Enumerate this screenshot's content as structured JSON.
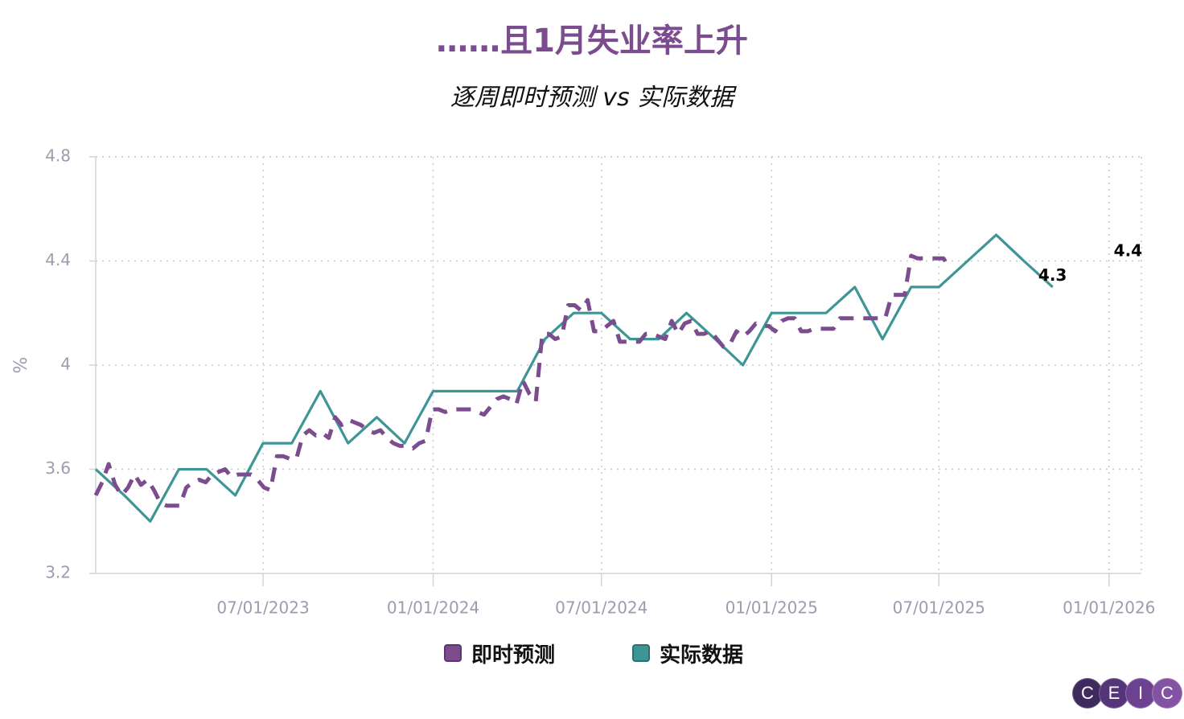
{
  "chart_data": {
    "type": "line",
    "title": "……且1月失业率上升",
    "subtitle": "逐周即时预测 vs 实际数据",
    "ylabel": "%",
    "xlabel": "",
    "ylim": [
      3.2,
      4.8
    ],
    "yticks": [
      3.2,
      3.6,
      4,
      4.4,
      4.8
    ],
    "ytick_labels": [
      "3.2",
      "3.6",
      "4",
      "4.4",
      "4.8"
    ],
    "xlim": [
      "2023-01-01",
      "2026-02-05"
    ],
    "xticks": [
      "2023-07-01",
      "2024-01-01",
      "2024-07-01",
      "2025-01-01",
      "2025-07-01",
      "2026-01-01"
    ],
    "xtick_labels": [
      "07/01/2023",
      "01/01/2024",
      "07/01/2024",
      "01/01/2025",
      "07/01/2025",
      "01/01/2026"
    ],
    "grid": true,
    "legend_position": "bottom-center",
    "series": [
      {
        "name": "即时预测",
        "color": "#7b4c8e",
        "style": "dashed",
        "points": [
          [
            "2023-01-01",
            3.5
          ],
          [
            "2023-01-08",
            3.55
          ],
          [
            "2023-01-15",
            3.62
          ],
          [
            "2023-01-22",
            3.54
          ],
          [
            "2023-01-29",
            3.5
          ],
          [
            "2023-02-05",
            3.53
          ],
          [
            "2023-02-12",
            3.58
          ],
          [
            "2023-02-19",
            3.54
          ],
          [
            "2023-02-26",
            3.56
          ],
          [
            "2023-03-05",
            3.52
          ],
          [
            "2023-03-12",
            3.47
          ],
          [
            "2023-03-19",
            3.46
          ],
          [
            "2023-03-26",
            3.46
          ],
          [
            "2023-04-02",
            3.46
          ],
          [
            "2023-04-09",
            3.53
          ],
          [
            "2023-04-16",
            3.55
          ],
          [
            "2023-04-23",
            3.56
          ],
          [
            "2023-04-30",
            3.55
          ],
          [
            "2023-05-07",
            3.58
          ],
          [
            "2023-05-14",
            3.59
          ],
          [
            "2023-05-21",
            3.6
          ],
          [
            "2023-05-28",
            3.57
          ],
          [
            "2023-06-04",
            3.58
          ],
          [
            "2023-06-11",
            3.58
          ],
          [
            "2023-06-18",
            3.58
          ],
          [
            "2023-06-25",
            3.56
          ],
          [
            "2023-07-02",
            3.53
          ],
          [
            "2023-07-09",
            3.52
          ],
          [
            "2023-07-16",
            3.65
          ],
          [
            "2023-07-23",
            3.65
          ],
          [
            "2023-07-30",
            3.64
          ],
          [
            "2023-08-06",
            3.64
          ],
          [
            "2023-08-13",
            3.73
          ],
          [
            "2023-08-20",
            3.75
          ],
          [
            "2023-08-27",
            3.73
          ],
          [
            "2023-09-03",
            3.74
          ],
          [
            "2023-09-10",
            3.72
          ],
          [
            "2023-09-17",
            3.8
          ],
          [
            "2023-09-24",
            3.77
          ],
          [
            "2023-10-01",
            3.79
          ],
          [
            "2023-10-08",
            3.78
          ],
          [
            "2023-10-15",
            3.77
          ],
          [
            "2023-10-22",
            3.75
          ],
          [
            "2023-10-29",
            3.74
          ],
          [
            "2023-11-05",
            3.75
          ],
          [
            "2023-11-12",
            3.72
          ],
          [
            "2023-11-19",
            3.7
          ],
          [
            "2023-11-26",
            3.69
          ],
          [
            "2023-12-03",
            3.69
          ],
          [
            "2023-12-10",
            3.68
          ],
          [
            "2023-12-17",
            3.7
          ],
          [
            "2023-12-24",
            3.71
          ],
          [
            "2023-12-31",
            3.83
          ],
          [
            "2024-01-07",
            3.83
          ],
          [
            "2024-01-14",
            3.82
          ],
          [
            "2024-01-21",
            3.83
          ],
          [
            "2024-01-28",
            3.83
          ],
          [
            "2024-02-04",
            3.83
          ],
          [
            "2024-02-11",
            3.83
          ],
          [
            "2024-02-18",
            3.82
          ],
          [
            "2024-02-25",
            3.81
          ],
          [
            "2024-03-03",
            3.84
          ],
          [
            "2024-03-10",
            3.87
          ],
          [
            "2024-03-17",
            3.88
          ],
          [
            "2024-03-24",
            3.87
          ],
          [
            "2024-03-31",
            3.85
          ],
          [
            "2024-04-07",
            3.94
          ],
          [
            "2024-04-14",
            3.89
          ],
          [
            "2024-04-21",
            3.86
          ],
          [
            "2024-04-28",
            4.12
          ],
          [
            "2024-05-05",
            4.12
          ],
          [
            "2024-05-12",
            4.1
          ],
          [
            "2024-05-19",
            4.11
          ],
          [
            "2024-05-26",
            4.23
          ],
          [
            "2024-06-02",
            4.23
          ],
          [
            "2024-06-09",
            4.21
          ],
          [
            "2024-06-16",
            4.25
          ],
          [
            "2024-06-23",
            4.13
          ],
          [
            "2024-06-30",
            4.13
          ],
          [
            "2024-07-07",
            4.15
          ],
          [
            "2024-07-14",
            4.17
          ],
          [
            "2024-07-21",
            4.09
          ],
          [
            "2024-07-28",
            4.09
          ],
          [
            "2024-08-04",
            4.09
          ],
          [
            "2024-08-11",
            4.09
          ],
          [
            "2024-08-18",
            4.12
          ],
          [
            "2024-08-25",
            4.12
          ],
          [
            "2024-09-01",
            4.11
          ],
          [
            "2024-09-08",
            4.1
          ],
          [
            "2024-09-15",
            4.17
          ],
          [
            "2024-09-22",
            4.12
          ],
          [
            "2024-09-29",
            4.16
          ],
          [
            "2024-10-06",
            4.17
          ],
          [
            "2024-10-13",
            4.12
          ],
          [
            "2024-10-20",
            4.12
          ],
          [
            "2024-10-27",
            4.13
          ],
          [
            "2024-11-03",
            4.1
          ],
          [
            "2024-11-10",
            4.07
          ],
          [
            "2024-11-17",
            4.08
          ],
          [
            "2024-11-24",
            4.13
          ],
          [
            "2024-12-01",
            4.11
          ],
          [
            "2024-12-08",
            4.13
          ],
          [
            "2024-12-15",
            4.16
          ],
          [
            "2024-12-22",
            4.15
          ],
          [
            "2024-12-29",
            4.15
          ],
          [
            "2025-01-05",
            4.13
          ],
          [
            "2025-01-12",
            4.17
          ],
          [
            "2025-01-19",
            4.18
          ],
          [
            "2025-01-26",
            4.18
          ],
          [
            "2025-02-02",
            4.13
          ],
          [
            "2025-02-09",
            4.13
          ],
          [
            "2025-02-16",
            4.14
          ],
          [
            "2025-02-23",
            4.14
          ],
          [
            "2025-03-02",
            4.14
          ],
          [
            "2025-03-09",
            4.14
          ],
          [
            "2025-03-16",
            4.18
          ],
          [
            "2025-03-23",
            4.18
          ],
          [
            "2025-03-30",
            4.18
          ],
          [
            "2025-04-06",
            4.18
          ],
          [
            "2025-04-13",
            4.18
          ],
          [
            "2025-04-20",
            4.18
          ],
          [
            "2025-04-27",
            4.18
          ],
          [
            "2025-05-04",
            4.18
          ],
          [
            "2025-05-11",
            4.27
          ],
          [
            "2025-05-18",
            4.27
          ],
          [
            "2025-05-25",
            4.27
          ],
          [
            "2025-06-01",
            4.42
          ],
          [
            "2025-06-08",
            4.41
          ],
          [
            "2025-06-15",
            4.41
          ],
          [
            "2025-06-22",
            4.41
          ],
          [
            "2025-06-29",
            4.41
          ],
          [
            "2025-07-06",
            4.41
          ],
          [
            "2025-07-13",
            4.37
          ]
        ]
      },
      {
        "name": "实际数据",
        "color": "#3e9596",
        "style": "solid",
        "points": [
          [
            "2023-01-01",
            3.6
          ],
          [
            "2023-02-01",
            3.5
          ],
          [
            "2023-03-01",
            3.4
          ],
          [
            "2023-04-01",
            3.6
          ],
          [
            "2023-05-01",
            3.6
          ],
          [
            "2023-06-01",
            3.5
          ],
          [
            "2023-07-01",
            3.7
          ],
          [
            "2023-08-01",
            3.7
          ],
          [
            "2023-09-01",
            3.9
          ],
          [
            "2023-10-01",
            3.7
          ],
          [
            "2023-11-01",
            3.8
          ],
          [
            "2023-12-01",
            3.7
          ],
          [
            "2024-01-01",
            3.9
          ],
          [
            "2024-02-01",
            3.9
          ],
          [
            "2024-03-01",
            3.9
          ],
          [
            "2024-04-01",
            3.9
          ],
          [
            "2024-05-01",
            4.1
          ],
          [
            "2024-06-01",
            4.2
          ],
          [
            "2024-07-01",
            4.2
          ],
          [
            "2024-08-01",
            4.1
          ],
          [
            "2024-09-01",
            4.1
          ],
          [
            "2024-10-01",
            4.2
          ],
          [
            "2024-11-01",
            4.1
          ],
          [
            "2024-12-01",
            4.0
          ],
          [
            "2025-01-01",
            4.2
          ],
          [
            "2025-02-01",
            4.2
          ],
          [
            "2025-03-01",
            4.2
          ],
          [
            "2025-04-01",
            4.3
          ],
          [
            "2025-05-01",
            4.1
          ],
          [
            "2025-06-01",
            4.3
          ],
          [
            "2025-07-01",
            4.3
          ],
          [
            "2025-08-01",
            4.4
          ],
          [
            "2025-09-01",
            4.5
          ],
          [
            "2025-10-01",
            4.4
          ],
          [
            "2025-11-01",
            4.3
          ]
        ]
      }
    ],
    "annotations": [
      {
        "text": "4.3",
        "x": "2025-11-01",
        "y": 4.3,
        "series": "实际数据"
      },
      {
        "text": "4.4",
        "x": "2026-02-01",
        "y": 4.4,
        "series": "即时预测"
      }
    ]
  },
  "brand": {
    "letters": [
      "C",
      "E",
      "I",
      "C"
    ],
    "colors": [
      "#3e2a5e",
      "#55357a",
      "#6c4290",
      "#8452a3"
    ]
  }
}
